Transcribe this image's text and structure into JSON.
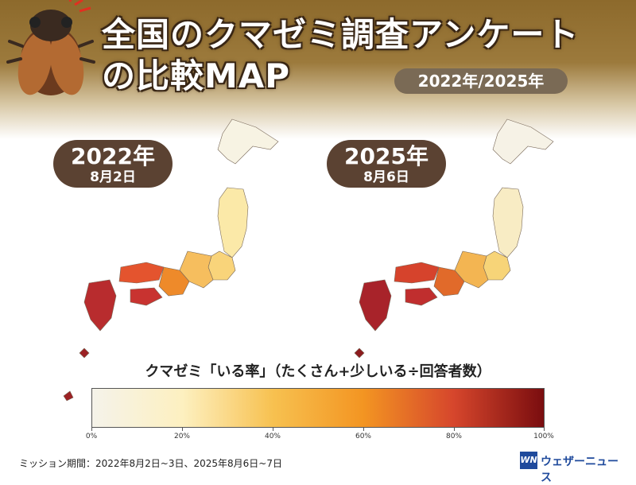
{
  "header": {
    "title": "全国のクマゼミ調査アンケート\nの比較MAP",
    "years": "2022年/2025年"
  },
  "maps": [
    {
      "year": "2022年",
      "date": "8月2日"
    },
    {
      "year": "2025年",
      "date": "8月6日"
    }
  ],
  "legend": {
    "title": "クマゼミ「いる率」（たくさん+少しいる÷回答者数）",
    "ticks": [
      "0%",
      "20%",
      "40%",
      "60%",
      "80%",
      "100%"
    ],
    "colors": [
      "#f5f3ea",
      "#fdf0c0",
      "#f7c150",
      "#f39522",
      "#d6462c",
      "#7a0d0f"
    ]
  },
  "footnote": "ミッション期間：2022年8月2日~3日、2025年8月6日~7日",
  "logo": {
    "mark": "WN",
    "text": "ウェザーニュース"
  },
  "icons": {
    "cicada": "cicada-icon"
  }
}
